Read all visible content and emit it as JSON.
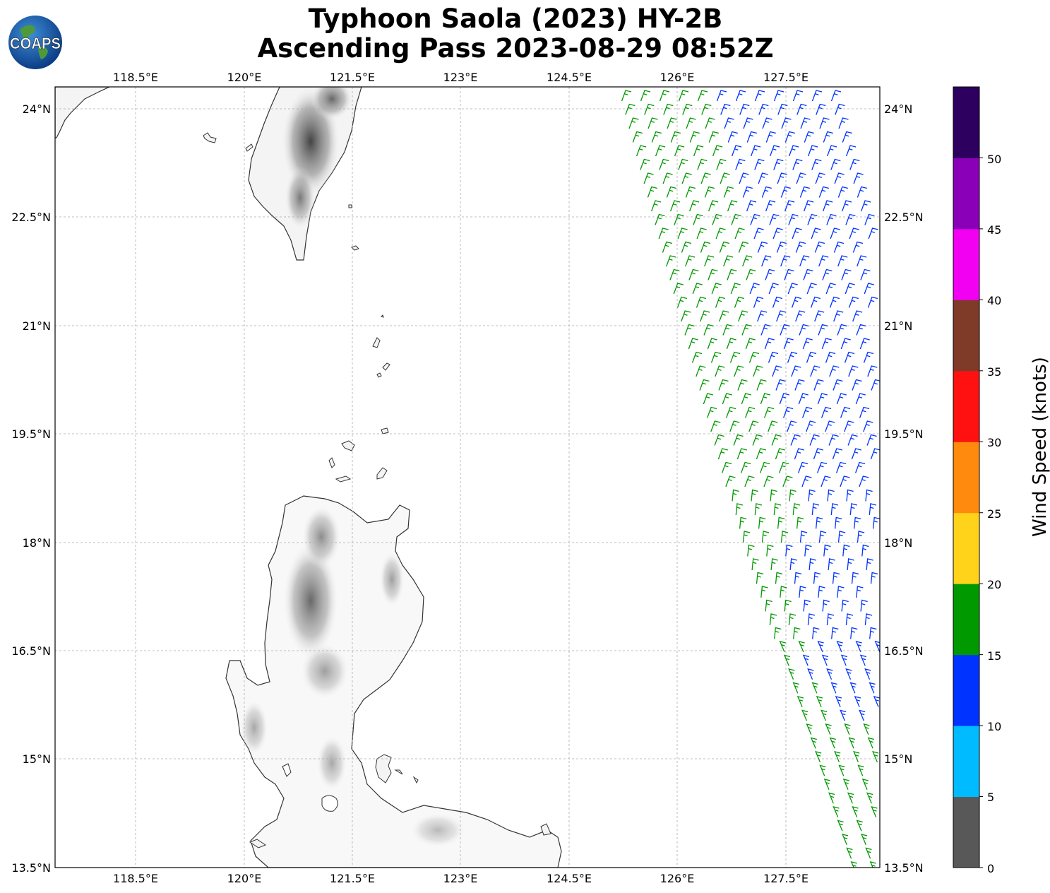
{
  "title_line1": "Typhoon Saola (2023) HY-2B",
  "title_line2": "Ascending Pass 2023-08-29 08:52Z",
  "logo_text": "COAPS",
  "lon_ticks": [
    "118.5°E",
    "120°E",
    "121.5°E",
    "123°E",
    "124.5°E",
    "126°E",
    "127.5°E"
  ],
  "lon_values": [
    118.5,
    120,
    121.5,
    123,
    124.5,
    126,
    127.5
  ],
  "lat_ticks": [
    "24°N",
    "22.5°N",
    "21°N",
    "19.5°N",
    "18°N",
    "16.5°N",
    "15°N",
    "13.5°N"
  ],
  "lat_values": [
    24,
    22.5,
    21,
    19.5,
    18,
    16.5,
    15,
    13.5
  ],
  "map_extent": {
    "lon_min": 116.98,
    "lon_max": 128.42,
    "lat_min": 13.5,
    "lat_max": 24.3
  },
  "colorbar": {
    "label": "Wind Speed (knots)",
    "ticks": [
      "0",
      "5",
      "10",
      "15",
      "20",
      "25",
      "30",
      "35",
      "40",
      "45",
      "50"
    ],
    "bins": [
      {
        "range": "0-5",
        "color": "#585858"
      },
      {
        "range": "5-10",
        "color": "#00bbff"
      },
      {
        "range": "10-15",
        "color": "#0033ff"
      },
      {
        "range": "15-20",
        "color": "#009900"
      },
      {
        "range": "20-25",
        "color": "#ffd31a"
      },
      {
        "range": "25-30",
        "color": "#ff8a0d"
      },
      {
        "range": "30-35",
        "color": "#ff1111"
      },
      {
        "range": "35-40",
        "color": "#7f3a28"
      },
      {
        "range": "40-45",
        "color": "#f100f1"
      },
      {
        "range": "45-50",
        "color": "#8a00b8"
      },
      {
        "range": ">50",
        "color": "#2d0060"
      }
    ]
  },
  "wind_colors": {
    "green": "#009900",
    "blue": "#0033ff"
  },
  "land_features": [
    "Taiwan",
    "Luzon",
    "Batanes Islands",
    "Babuyan Islands"
  ]
}
